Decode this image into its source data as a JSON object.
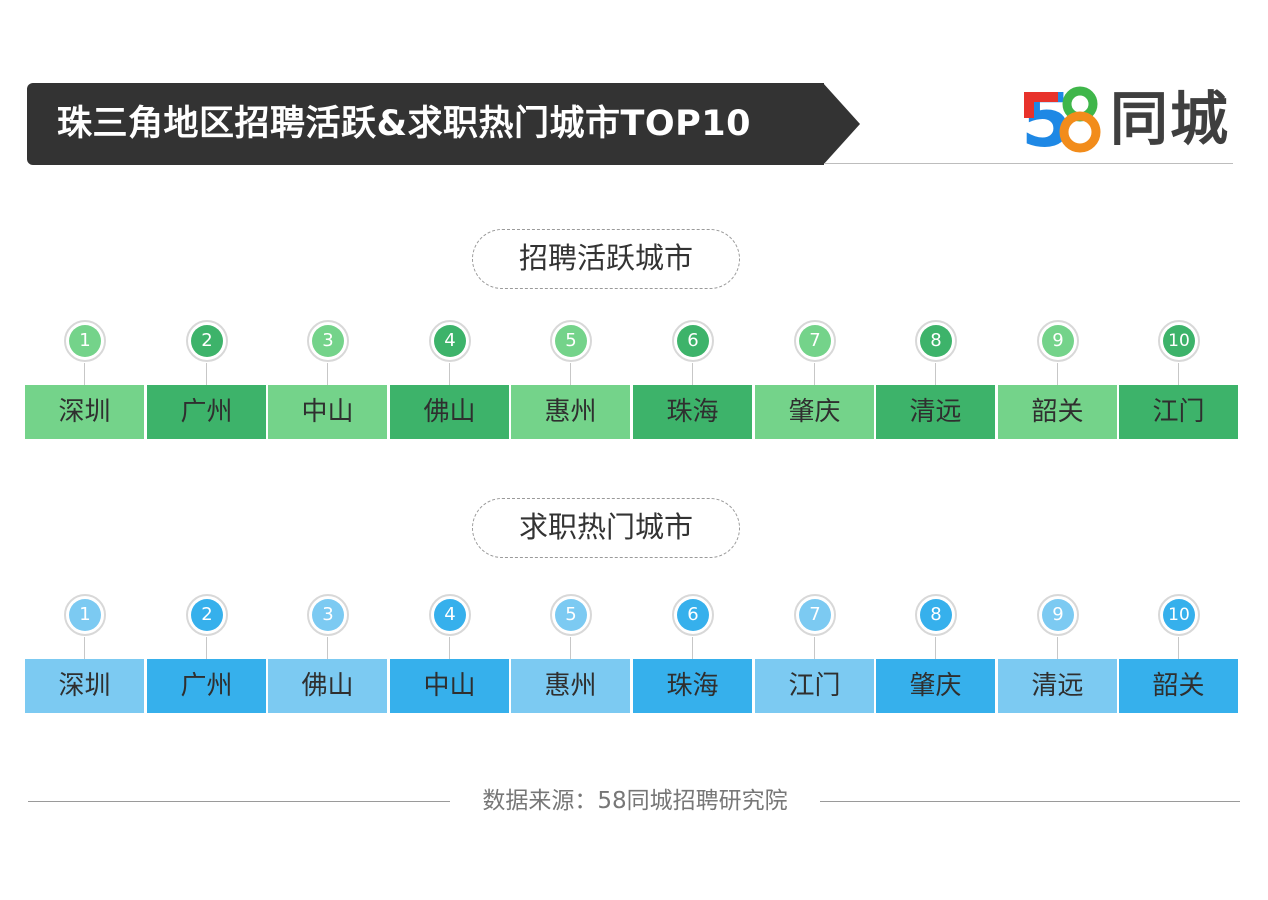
{
  "header": {
    "title": "珠三角地区招聘活跃&求职热门城市TOP10"
  },
  "logo": {
    "digit_5": "5",
    "digit_8": "8",
    "text": "同城",
    "colors": {
      "five_top": "#e8322b",
      "five_bottom": "#1e88e5",
      "eight_top": "#3fb64a",
      "eight_bottom": "#f28c1b"
    }
  },
  "sections": [
    {
      "title": "招聘活跃城市",
      "colors": {
        "light": "#74d38a",
        "dark": "#3db36a"
      },
      "items": [
        {
          "rank": "1",
          "city": "深圳"
        },
        {
          "rank": "2",
          "city": "广州"
        },
        {
          "rank": "3",
          "city": "中山"
        },
        {
          "rank": "4",
          "city": "佛山"
        },
        {
          "rank": "5",
          "city": "惠州"
        },
        {
          "rank": "6",
          "city": "珠海"
        },
        {
          "rank": "7",
          "city": "肇庆"
        },
        {
          "rank": "8",
          "city": "清远"
        },
        {
          "rank": "9",
          "city": "韶关"
        },
        {
          "rank": "10",
          "city": "江门"
        }
      ]
    },
    {
      "title": "求职热门城市",
      "colors": {
        "light": "#7ccaf2",
        "dark": "#36b0ec"
      },
      "items": [
        {
          "rank": "1",
          "city": "深圳"
        },
        {
          "rank": "2",
          "city": "广州"
        },
        {
          "rank": "3",
          "city": "佛山"
        },
        {
          "rank": "4",
          "city": "中山"
        },
        {
          "rank": "5",
          "city": "惠州"
        },
        {
          "rank": "6",
          "city": "珠海"
        },
        {
          "rank": "7",
          "city": "江门"
        },
        {
          "rank": "8",
          "city": "肇庆"
        },
        {
          "rank": "9",
          "city": "清远"
        },
        {
          "rank": "10",
          "city": "韶关"
        }
      ]
    }
  ],
  "footer": {
    "source": "数据来源：58同城招聘研究院"
  }
}
